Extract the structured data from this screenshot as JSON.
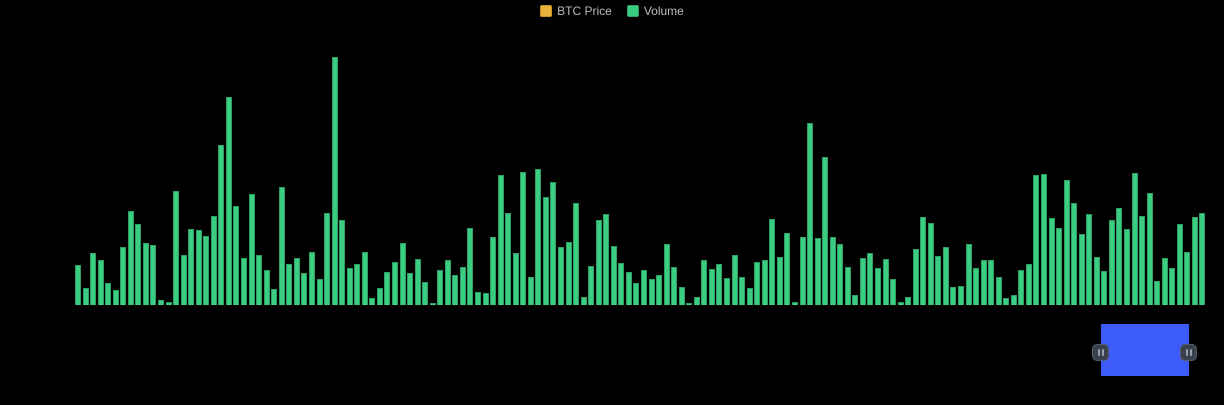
{
  "background_color": "#000000",
  "legend": {
    "items": [
      {
        "label": "BTC Price",
        "color": "#E8B33C",
        "border_color": "#C79522"
      },
      {
        "label": "Volume",
        "color": "#3BCE82",
        "border_color": "#2E9E62"
      }
    ]
  },
  "chart_data": {
    "type": "bar",
    "title": "",
    "xlabel": "",
    "ylabel": "",
    "x_axis_labels_visible": false,
    "y_axis_labels_visible": false,
    "grid": false,
    "legend_position": "top-center",
    "ylim": [
      0,
      260
    ],
    "value_scale_note": "no axis labels visible; values are estimated bar heights in screen pixels",
    "series": [
      {
        "name": "Volume",
        "color": "#3BCE82",
        "border_color": "#2E9E62",
        "values": [
          40,
          17,
          52,
          45,
          22,
          15,
          58,
          94,
          81,
          62,
          60,
          5,
          3,
          114,
          50,
          76,
          75,
          69,
          89,
          160,
          208,
          99,
          47,
          111,
          50,
          35,
          16,
          118,
          41,
          47,
          32,
          53,
          26,
          92,
          248,
          85,
          37,
          41,
          53,
          7,
          17,
          33,
          43,
          62,
          32,
          46,
          23,
          2,
          35,
          45,
          30,
          38,
          77,
          13,
          12,
          68,
          130,
          92,
          52,
          133,
          28,
          136,
          108,
          123,
          58,
          63,
          102,
          8,
          39,
          85,
          91,
          59,
          42,
          33,
          22,
          35,
          26,
          30,
          61,
          38,
          18,
          2,
          8,
          45,
          36,
          41,
          27,
          50,
          28,
          17,
          43,
          45,
          86,
          48,
          72,
          3,
          68,
          182,
          67,
          148,
          68,
          61,
          38,
          10,
          47,
          52,
          37,
          46,
          26,
          3,
          8,
          56,
          88,
          82,
          49,
          58,
          18,
          19,
          61,
          37,
          45,
          45,
          28,
          7,
          10,
          35,
          41,
          130,
          131,
          87,
          77,
          125,
          102,
          71,
          91,
          48,
          34,
          85,
          97,
          76,
          132,
          89,
          112,
          24,
          47,
          37,
          81,
          53,
          88,
          92
        ]
      },
      {
        "name": "BTC Price",
        "color": "#E8B33C",
        "values": [],
        "visible_in_plot": false
      }
    ]
  },
  "datazoom": {
    "window_color": "#3D5BF8",
    "handle_color": "#3A414D",
    "handle_icon": "pause-icon"
  }
}
